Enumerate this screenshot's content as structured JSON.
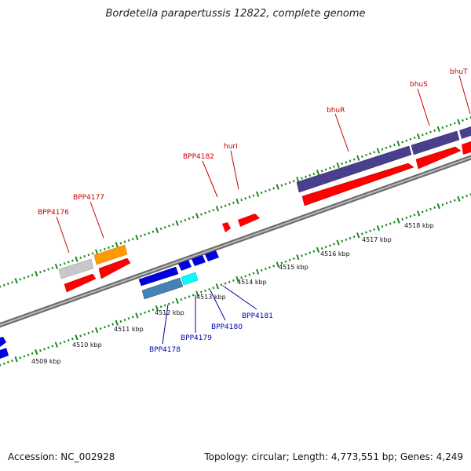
{
  "title": "Bordetella parapertussis 12822, complete genome",
  "footer": {
    "accession": "Accession: NC_002928",
    "summary": "Topology: circular; Length: 4,773,551 bp; Genes: 4,249"
  },
  "axis": {
    "unit_labels": [
      "4509 kbp",
      "4510 kbp",
      "4511 kbp",
      "4512 kbp",
      "4513 kbp",
      "4514 kbp",
      "4515 kbp",
      "4516 kbp",
      "4517 kbp",
      "4518 kbp"
    ]
  },
  "gene_labels": {
    "top": [
      "BPP4176",
      "BPP4177",
      "BPP4182",
      "hurI",
      "bhuR",
      "bhuS",
      "bhuT"
    ],
    "bottom": [
      "BPP4178",
      "BPP4179",
      "BPP4180",
      "BPP4181"
    ]
  },
  "colors": {
    "label_top": "#cc0000",
    "label_bottom": "#0000aa",
    "tick": "#1a8a1a",
    "backbone": "#888888",
    "forward_gene": "#ff0000",
    "reverse_gene": "#0000dd",
    "purple_gene": "#4a3f8c",
    "orange_gene": "#ff9900",
    "gray_gene": "#c8c8c8",
    "steel_gene": "#4682b4",
    "cyan_gene": "#00ffff"
  }
}
